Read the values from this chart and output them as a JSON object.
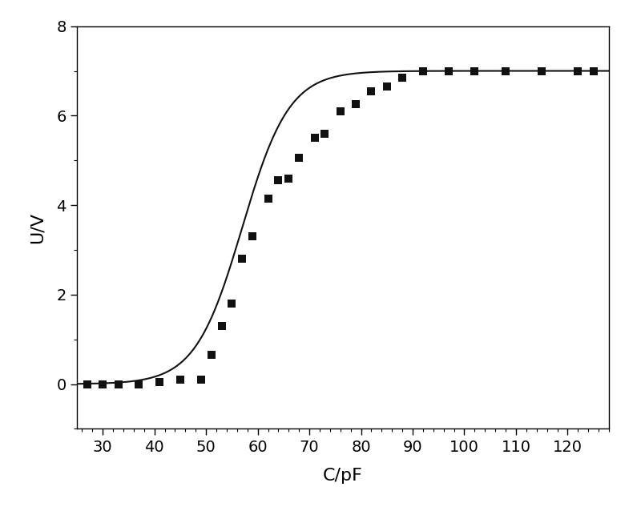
{
  "scatter_x": [
    27,
    30,
    33,
    37,
    41,
    45,
    49,
    51,
    53,
    55,
    57,
    59,
    62,
    64,
    66,
    68,
    71,
    73,
    76,
    79,
    82,
    85,
    88,
    92,
    97,
    102,
    108,
    115,
    122,
    125
  ],
  "scatter_y": [
    0.0,
    0.0,
    0.0,
    0.0,
    0.05,
    0.1,
    0.1,
    0.65,
    1.3,
    1.8,
    2.8,
    3.3,
    4.15,
    4.55,
    4.6,
    5.05,
    5.5,
    5.6,
    6.1,
    6.25,
    6.55,
    6.65,
    6.85,
    7.0,
    7.0,
    7.0,
    7.0,
    7.0,
    7.0,
    7.0
  ],
  "curve_x_min": 25,
  "curve_x_max": 128,
  "sigmoid_L": 7.0,
  "sigmoid_k": 0.22,
  "sigmoid_x0": 57.0,
  "xlabel": "C/pF",
  "ylabel": "U/V",
  "xlim": [
    25,
    128
  ],
  "ylim": [
    -1,
    8
  ],
  "xticks": [
    30,
    40,
    50,
    60,
    70,
    80,
    90,
    100,
    110,
    120
  ],
  "yticks": [
    0,
    2,
    4,
    6,
    8
  ],
  "x_minor_tick": 2,
  "y_minor_tick": 1,
  "marker_color": "#111111",
  "marker_size": 7,
  "line_color": "#111111",
  "line_width": 1.5,
  "background_color": "white",
  "xlabel_fontsize": 16,
  "ylabel_fontsize": 16,
  "tick_labelsize": 14
}
